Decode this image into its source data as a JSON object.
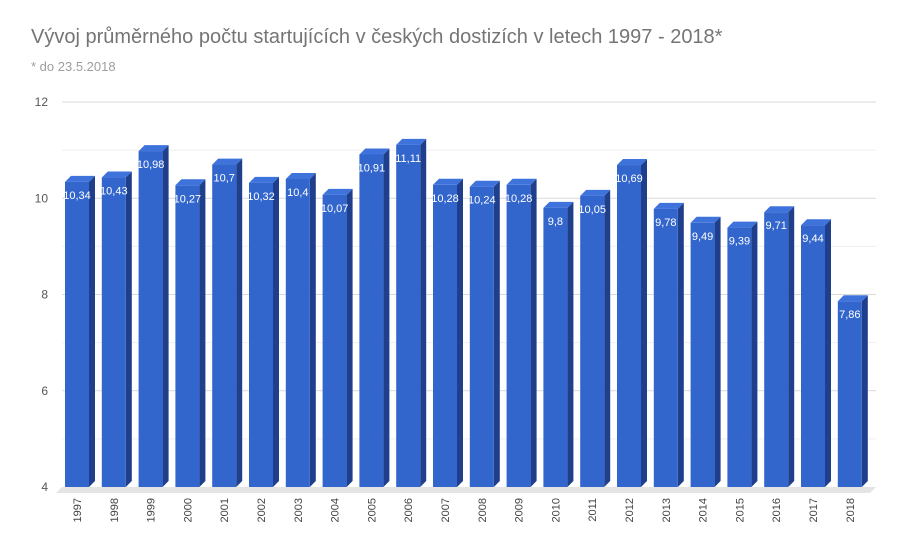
{
  "chart_data": {
    "type": "bar",
    "title": "Vývoj průměrného počtu startujících v českých dostizích v letech 1997 - 2018*",
    "subtitle": "* do 23.5.2018",
    "xlabel": "",
    "ylabel": "",
    "ylim": [
      4,
      12
    ],
    "yticks": [
      4,
      6,
      8,
      10,
      12
    ],
    "grid": true,
    "legend": "none",
    "bar_color": "#3366cc",
    "categories": [
      "1997",
      "1998",
      "1999",
      "2000",
      "2001",
      "2002",
      "2003",
      "2004",
      "2005",
      "2006",
      "2007",
      "2008",
      "2009",
      "2010",
      "2011",
      "2012",
      "2013",
      "2014",
      "2015",
      "2016",
      "2017",
      "2018"
    ],
    "values": [
      10.34,
      10.43,
      10.98,
      10.27,
      10.7,
      10.32,
      10.4,
      10.07,
      10.91,
      11.11,
      10.28,
      10.24,
      10.28,
      9.8,
      10.05,
      10.69,
      9.78,
      9.49,
      9.39,
      9.71,
      9.44,
      7.86
    ],
    "value_labels": [
      "10,34",
      "10,43",
      "10,98",
      "10,27",
      "10,7",
      "10,32",
      "10,4",
      "10,07",
      "10,91",
      "11,11",
      "10,28",
      "10,24",
      "10,28",
      "9,8",
      "10,05",
      "10,69",
      "9,78",
      "9,49",
      "9,39",
      "9,71",
      "9,44",
      "7,86"
    ]
  }
}
